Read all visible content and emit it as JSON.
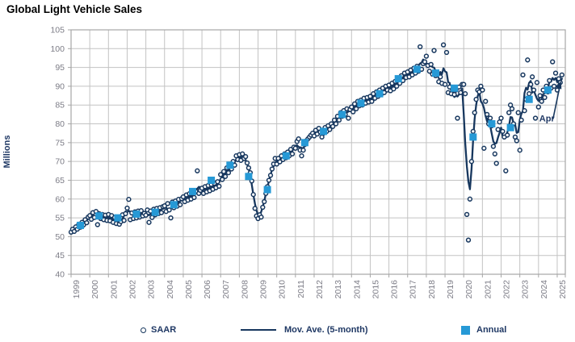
{
  "title": "Global Light Vehicle Sales",
  "y_axis": {
    "label": "Millions",
    "ticks": [
      105,
      100,
      95,
      90,
      85,
      80,
      75,
      70,
      65,
      60,
      55,
      50,
      45,
      40
    ],
    "min": 40,
    "max": 105,
    "step": 5
  },
  "x_axis": {
    "years": [
      1999,
      2000,
      2001,
      2002,
      2003,
      2004,
      2005,
      2006,
      2007,
      2008,
      2009,
      2010,
      2011,
      2012,
      2013,
      2014,
      2015,
      2016,
      2017,
      2018,
      2019,
      2020,
      2021,
      2022,
      2023,
      2024,
      2025
    ]
  },
  "legend": {
    "saar": "SAAR",
    "moving_average": "Mov. Ave. (5-month)",
    "annual": "Annual"
  },
  "annotation": {
    "text": "Apr"
  },
  "colors": {
    "navy": "#17375E",
    "navy_text": "#1F3864",
    "azure": "#2699D6",
    "grid": "#C3C3C3",
    "frame": "#A6A6A6",
    "axis_label": "#7C7C86",
    "title": "#000000"
  },
  "chart_data": {
    "type": "scatter",
    "title": "Global Light Vehicle Sales",
    "ylabel": "Millions",
    "ylim": [
      40,
      105
    ],
    "ytick_step": 5,
    "x_range": [
      "Jan 1999",
      "Apr 2025"
    ],
    "grid": true,
    "legend_position": "bottom",
    "series": [
      {
        "name": "SAAR",
        "type": "scatter-circle",
        "unit": "millions, seasonally adjusted annual rate",
        "monthly": {
          "1999": [
            51.2,
            52.0,
            51.4,
            52.6,
            52.0,
            53.3,
            52.5,
            53.8,
            53.1,
            54.5,
            53.7,
            55.2
          ],
          "2000": [
            55.6,
            54.6,
            56.4,
            55.1,
            56.7,
            53.2,
            56.1,
            54.8,
            55.9,
            54.5,
            55.7,
            54.3
          ],
          "2001": [
            55.9,
            54.2,
            55.6,
            53.8,
            55.1,
            53.5,
            54.7,
            53.3,
            54.0,
            55.8,
            54.3,
            56.1
          ],
          "2002": [
            57.6,
            59.9,
            54.5,
            56.3,
            54.8,
            56.6,
            55.0,
            56.8,
            55.2,
            56.9,
            55.5,
            56.2
          ],
          "2003": [
            55.7,
            57.1,
            53.8,
            56.8,
            55.1,
            57.3,
            55.8,
            57.5,
            56.1,
            57.7,
            56.4,
            58.0
          ],
          "2004": [
            58.2,
            56.7,
            58.8,
            57.1,
            55.0,
            59.2,
            57.7,
            59.5,
            58.1,
            59.9,
            58.5,
            60.1
          ],
          "2005": [
            60.6,
            59.3,
            61.1,
            59.7,
            61.4,
            60.0,
            61.8,
            60.4,
            62.0,
            67.5,
            61.5,
            62.3
          ],
          "2006": [
            62.9,
            61.5,
            63.3,
            61.9,
            63.6,
            62.2,
            63.9,
            62.6,
            64.2,
            63.0,
            64.6,
            63.4
          ],
          "2007": [
            66.5,
            65.2,
            67.3,
            66.0,
            68.3,
            67.0,
            69.0,
            68.0,
            70.0,
            69.0,
            71.5,
            70.5
          ],
          "2008": [
            71.8,
            70.3,
            72.0,
            70.8,
            71.3,
            69.6,
            68.3,
            67.0,
            64.8,
            61.2,
            57.5,
            55.5
          ],
          "2009": [
            54.8,
            55.8,
            55.2,
            57.8,
            59.3,
            61.5,
            63.3,
            65.0,
            66.3,
            68.0,
            69.3,
            70.8
          ],
          "2010": [
            69.3,
            70.8,
            69.9,
            71.5,
            70.5,
            72.0,
            71.0,
            72.5,
            71.5,
            73.2,
            72.0,
            73.8
          ],
          "2011": [
            73.5,
            75.3,
            76.0,
            73.0,
            71.5,
            73.0,
            74.5,
            75.5,
            76.0,
            76.5,
            77.0,
            77.5
          ],
          "2012": [
            76.8,
            78.3,
            77.3,
            78.8,
            77.8,
            76.5,
            77.5,
            79.0,
            78.0,
            79.5,
            78.5,
            80.0
          ],
          "2013": [
            79.3,
            81.0,
            80.0,
            82.0,
            81.0,
            83.0,
            82.0,
            83.5,
            82.5,
            84.0,
            81.5,
            83.8
          ],
          "2014": [
            84.5,
            83.2,
            85.3,
            84.0,
            86.0,
            84.8,
            86.3,
            85.0,
            86.8,
            85.5,
            87.0,
            85.8
          ],
          "2015": [
            87.3,
            86.0,
            88.0,
            86.8,
            88.5,
            87.3,
            89.0,
            87.8,
            89.5,
            88.3,
            90.0,
            89.0
          ],
          "2016": [
            90.3,
            88.8,
            90.8,
            89.3,
            91.3,
            90.0,
            92.0,
            90.8,
            92.8,
            91.5,
            93.5,
            92.3
          ],
          "2017": [
            93.8,
            92.5,
            94.3,
            93.0,
            94.8,
            93.5,
            95.3,
            94.0,
            100.5,
            94.5,
            96.0,
            96.5
          ],
          "2018": [
            98.0,
            95.5,
            94.0,
            95.8,
            93.2,
            99.5,
            92.8,
            93.5,
            91.2,
            92.5,
            90.8,
            101.0
          ],
          "2019": [
            90.5,
            99.0,
            88.3,
            89.8,
            88.0,
            89.3,
            87.8,
            89.0,
            81.5,
            89.8,
            88.3,
            90.5
          ],
          "2020": [
            90.5,
            88.0,
            55.9,
            49.1,
            60.0,
            70.0,
            78.0,
            83.0,
            86.5,
            89.0,
            88.5,
            90.0
          ],
          "2021": [
            89.0,
            73.5,
            86.0,
            82.5,
            80.0,
            81.5,
            79.5,
            74.0,
            72.0,
            69.5,
            78.5,
            80.5
          ],
          "2022": [
            81.5,
            78.0,
            76.5,
            67.5,
            77.0,
            83.0,
            85.0,
            84.0,
            80.0,
            76.5,
            75.5,
            83.0
          ],
          "2023": [
            73.0,
            81.0,
            93.0,
            83.5,
            86.5,
            97.0,
            88.0,
            90.5,
            92.5,
            89.0,
            81.5,
            91.0
          ],
          "2024": [
            84.5,
            87.5,
            86.0,
            89.0,
            87.0,
            90.0,
            88.5,
            91.5,
            89.5,
            96.5,
            90.0,
            93.5
          ],
          "2025": [
            89.0,
            92.0,
            91.0,
            93.0
          ]
        }
      },
      {
        "name": "Mov. Ave. (5-month)",
        "type": "line",
        "derived_from": "5-month moving average of the SAAR monthly series"
      },
      {
        "name": "Annual",
        "type": "scatter-square",
        "years": [
          1999,
          2000,
          2001,
          2002,
          2003,
          2004,
          2005,
          2006,
          2007,
          2008,
          2009,
          2010,
          2011,
          2012,
          2013,
          2014,
          2015,
          2016,
          2017,
          2018,
          2019,
          2020,
          2021,
          2022,
          2023,
          2024
        ],
        "values": [
          53.0,
          55.5,
          55.0,
          56.0,
          56.5,
          58.5,
          62.0,
          65.0,
          69.0,
          66.0,
          62.5,
          71.5,
          75.0,
          78.0,
          82.5,
          85.5,
          88.0,
          92.0,
          94.5,
          93.5,
          89.5,
          76.5,
          80.0,
          79.0,
          86.5,
          89.0
        ]
      }
    ],
    "annotation": {
      "text": "Apr",
      "target": "last SAAR / moving-average point (April 2025)"
    }
  }
}
